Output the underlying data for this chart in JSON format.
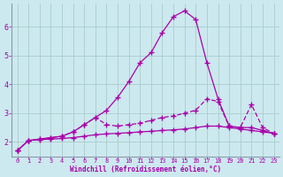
{
  "xlabel": "Windchill (Refroidissement éolien,°C)",
  "bg_color": "#cce9ef",
  "line_color": "#aa00aa",
  "grid_color": "#aacccc",
  "spine_color": "#8899aa",
  "xlim": [
    -0.5,
    23.5
  ],
  "ylim": [
    1.5,
    6.8
  ],
  "yticks": [
    2,
    3,
    4,
    5,
    6
  ],
  "xticks": [
    0,
    1,
    2,
    3,
    4,
    5,
    6,
    7,
    8,
    9,
    10,
    11,
    12,
    13,
    14,
    15,
    16,
    17,
    18,
    19,
    20,
    21,
    22,
    23
  ],
  "series_peak_x": [
    0,
    1,
    2,
    3,
    4,
    5,
    6,
    7,
    8,
    9,
    10,
    11,
    12,
    13,
    14,
    15,
    16,
    17,
    18,
    19,
    20,
    21,
    22,
    23
  ],
  "series_peak_y": [
    1.7,
    2.05,
    2.1,
    2.15,
    2.2,
    2.35,
    2.6,
    2.85,
    3.1,
    3.55,
    4.1,
    4.75,
    5.1,
    5.8,
    6.35,
    6.55,
    6.25,
    4.75,
    3.5,
    2.55,
    2.5,
    2.5,
    2.4,
    2.3
  ],
  "series_mid_x": [
    0,
    1,
    2,
    3,
    4,
    5,
    6,
    7,
    8,
    9,
    10,
    11,
    12,
    13,
    14,
    15,
    16,
    17,
    18,
    19,
    20,
    21,
    22,
    23
  ],
  "series_mid_y": [
    1.7,
    2.05,
    2.1,
    2.15,
    2.2,
    2.35,
    2.6,
    2.85,
    2.6,
    2.55,
    2.6,
    2.65,
    2.75,
    2.85,
    2.9,
    3.0,
    3.1,
    3.5,
    3.4,
    2.55,
    2.5,
    3.3,
    2.5,
    2.3
  ],
  "series_low_x": [
    0,
    1,
    2,
    3,
    4,
    5,
    6,
    7,
    8,
    9,
    10,
    11,
    12,
    13,
    14,
    15,
    16,
    17,
    18,
    19,
    20,
    21,
    22,
    23
  ],
  "series_low_y": [
    1.7,
    2.05,
    2.08,
    2.1,
    2.12,
    2.15,
    2.2,
    2.25,
    2.28,
    2.3,
    2.32,
    2.35,
    2.37,
    2.4,
    2.42,
    2.45,
    2.5,
    2.55,
    2.55,
    2.5,
    2.45,
    2.4,
    2.35,
    2.3
  ],
  "marker": "+",
  "markersize": 4,
  "markeredgewidth": 1.0,
  "linewidth": 0.9
}
